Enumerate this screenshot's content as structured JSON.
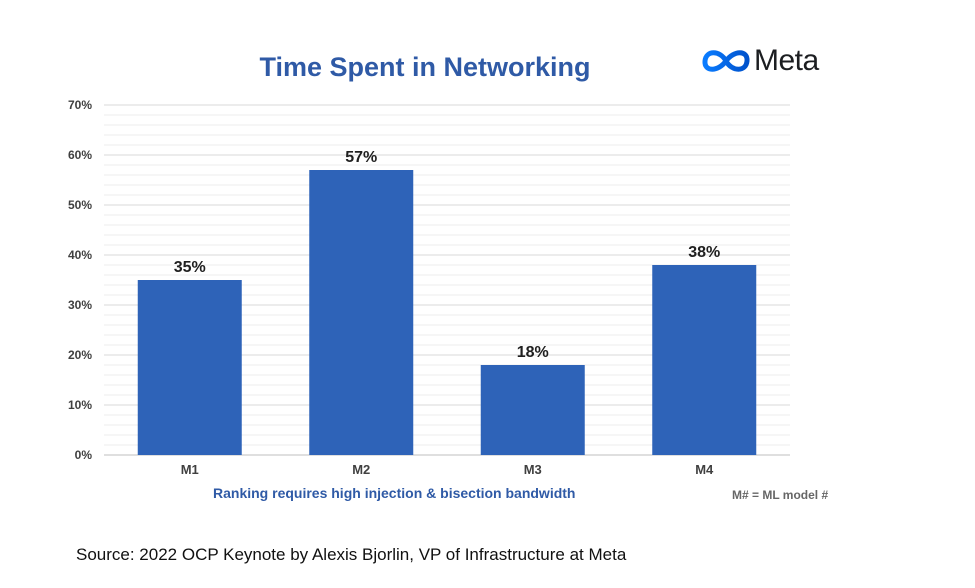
{
  "logo": {
    "text": "Meta"
  },
  "caption": "Ranking requires high injection & bisection bandwidth",
  "note": "M# = ML model #",
  "source": "Source: 2022 OCP Keynote by Alexis Bjorlin, VP of Infrastructure at Meta",
  "colors": {
    "bar": "#2e63b8",
    "title": "#2f5aa6",
    "grid": "#d9d9d9"
  },
  "chart_data": {
    "type": "bar",
    "title": "Time Spent in Networking",
    "categories": [
      "M1",
      "M2",
      "M3",
      "M4"
    ],
    "values": [
      35,
      57,
      18,
      38
    ],
    "data_labels": [
      "35%",
      "57%",
      "18%",
      "38%"
    ],
    "ylim": [
      0,
      70
    ],
    "yticks": [
      "0%",
      "10%",
      "20%",
      "30%",
      "40%",
      "50%",
      "60%",
      "70%"
    ],
    "grid": true,
    "legend": "none"
  }
}
